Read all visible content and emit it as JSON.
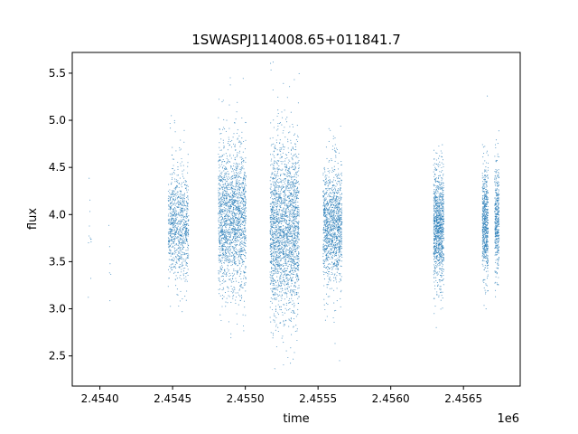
{
  "chart_data": {
    "type": "scatter",
    "title": "1SWASPJ114008.65+011841.7",
    "xlabel": "time",
    "ylabel": "flux",
    "x_offset_label": "1e6",
    "xlim": [
      2.45381,
      2.45689
    ],
    "ylim": [
      2.18,
      5.72
    ],
    "x_ticks": [
      2.454,
      2.4545,
      2.455,
      2.4555,
      2.456,
      2.4565
    ],
    "x_tick_labels": [
      "2.4540",
      "2.4545",
      "2.4550",
      "2.4555",
      "2.4560",
      "2.4565"
    ],
    "y_ticks": [
      2.5,
      3.0,
      3.5,
      4.0,
      4.5,
      5.0,
      5.5
    ],
    "y_tick_labels": [
      "2.5",
      "3.0",
      "3.5",
      "4.0",
      "4.5",
      "5.0",
      "5.5"
    ],
    "grid": false,
    "legend": "none",
    "marker_color": "#1f77b4",
    "series": [
      {
        "clusters": [
          {
            "x_center": 2.45393,
            "x_width": 2e-05,
            "y_center": 3.95,
            "y_spread": 0.3,
            "count": 12
          },
          {
            "x_center": 2.45407,
            "x_width": 2e-05,
            "y_center": 3.6,
            "y_spread": 0.3,
            "count": 6
          },
          {
            "x_center": 2.45454,
            "x_width": 0.00014,
            "y_center": 3.9,
            "y_spread": 0.28,
            "count": 900
          },
          {
            "x_center": 2.45491,
            "x_width": 0.00019,
            "y_center": 3.95,
            "y_spread": 0.4,
            "count": 1800
          },
          {
            "x_center": 2.45527,
            "x_width": 0.0002,
            "y_center": 3.85,
            "y_spread": 0.45,
            "count": 2200
          },
          {
            "x_center": 2.4556,
            "x_width": 0.00013,
            "y_center": 3.9,
            "y_spread": 0.3,
            "count": 1200
          },
          {
            "x_center": 2.45633,
            "x_width": 7e-05,
            "y_center": 3.9,
            "y_spread": 0.3,
            "count": 1000
          },
          {
            "x_center": 2.45665,
            "x_width": 4e-05,
            "y_center": 3.9,
            "y_spread": 0.3,
            "count": 600
          },
          {
            "x_center": 2.45673,
            "x_width": 3e-05,
            "y_center": 3.95,
            "y_spread": 0.28,
            "count": 400
          }
        ]
      }
    ]
  }
}
